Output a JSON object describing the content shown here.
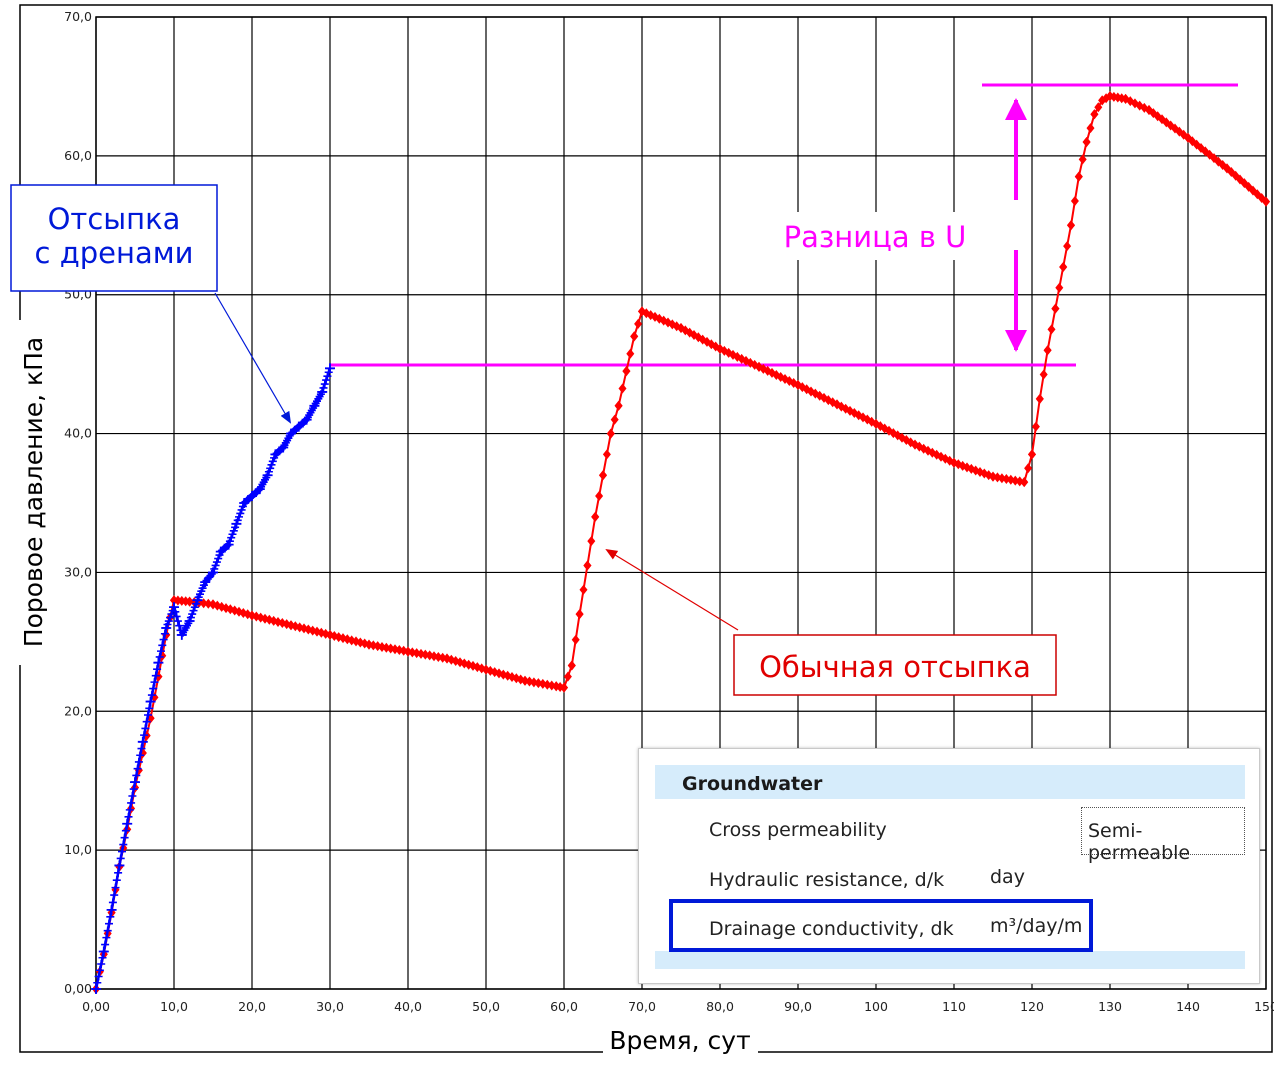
{
  "chart_data": {
    "type": "line",
    "xlabel": "Время, сут",
    "ylabel": "Поровое давление, кПа",
    "xlim": [
      0,
      150
    ],
    "ylim": [
      0,
      70
    ],
    "x_ticks": [
      0,
      10,
      20,
      30,
      40,
      50,
      60,
      70,
      80,
      90,
      100,
      110,
      120,
      130,
      140,
      150
    ],
    "x_tick_labels": [
      "0,00",
      "10,0",
      "20,0",
      "30,0",
      "40,0",
      "50,0",
      "60,0",
      "70,0",
      "80,0",
      "90,0",
      "100",
      "110",
      "120",
      "130",
      "140",
      "150"
    ],
    "y_ticks": [
      0,
      10,
      20,
      30,
      40,
      50,
      60,
      70
    ],
    "y_tick_labels": [
      "0,00",
      "10,0",
      "20,0",
      "30,0",
      "40,0",
      "50,0",
      "60,0",
      "70,0"
    ],
    "grid": true,
    "series": [
      {
        "name": "Обычная отсыпка",
        "color": "#ff0000",
        "marker": "diamond",
        "x": [
          0,
          1,
          2,
          3,
          4,
          5,
          6,
          7,
          8,
          9,
          10,
          12,
          15,
          20,
          25,
          30,
          35,
          40,
          45,
          50,
          55,
          59,
          60,
          61,
          62,
          63,
          64,
          65,
          66,
          67,
          68,
          69,
          70,
          75,
          80,
          85,
          90,
          95,
          100,
          105,
          110,
          115,
          119,
          120,
          121,
          122,
          123,
          124,
          125,
          126,
          127,
          128,
          129,
          130,
          132,
          135,
          140,
          145,
          150
        ],
        "y": [
          0,
          2.5,
          5.5,
          8.8,
          11.5,
          14.5,
          17,
          19.5,
          22.5,
          25.5,
          28,
          27.9,
          27.7,
          26.9,
          26.2,
          25.5,
          24.8,
          24.3,
          23.8,
          23,
          22.2,
          21.8,
          21.7,
          23.3,
          27,
          30.5,
          34,
          37,
          40,
          42,
          44.5,
          47,
          48.8,
          47.6,
          46.1,
          44.8,
          43.5,
          42.1,
          40.7,
          39.2,
          37.9,
          36.9,
          36.5,
          38.5,
          42.5,
          46,
          49,
          52,
          55,
          58.5,
          61,
          63,
          64,
          64.3,
          64.1,
          63.3,
          61.3,
          59.1,
          56.7
        ]
      },
      {
        "name": "Отсыпка с дренами",
        "color": "#0000ff",
        "marker": "plus",
        "x": [
          0,
          1,
          2,
          3,
          4,
          5,
          6,
          7,
          8,
          9,
          10,
          11,
          12,
          13,
          14,
          15,
          16,
          17,
          18,
          19,
          20,
          21,
          22,
          23,
          24,
          25,
          26,
          27,
          28,
          29,
          30
        ],
        "y": [
          0,
          2.7,
          5.7,
          8.9,
          11.9,
          14.9,
          17.8,
          20.7,
          23.5,
          26,
          27.5,
          25.5,
          26.5,
          28,
          29.3,
          30,
          31.5,
          32,
          33.5,
          35,
          35.5,
          36,
          37,
          38.5,
          39,
          40,
          40.5,
          41,
          42,
          43,
          44.7
        ]
      }
    ],
    "annotations": {
      "drains_label_line1": "Отсыпка",
      "drains_label_line2": "с дренами",
      "normal_label": "Обычная отсыпка",
      "difference_label": "Разница в U",
      "difference_levels": [
        44.7,
        64.3
      ]
    }
  },
  "panel": {
    "title": "Groundwater",
    "rows": [
      {
        "label": "Cross permeability",
        "unit": "",
        "value": "Semi-permeable"
      },
      {
        "label": "Hydraulic resistance, d/k",
        "unit": "day",
        "value": ""
      },
      {
        "label": "Drainage conductivity, dk",
        "unit": "m³/day/m",
        "value": ""
      }
    ]
  }
}
